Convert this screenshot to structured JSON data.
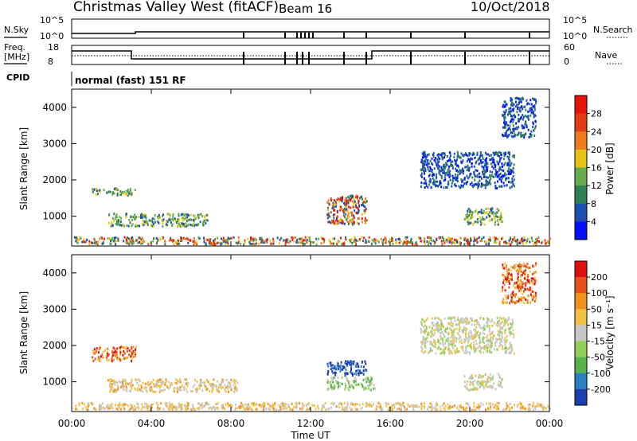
{
  "header": {
    "station": "Christmas Valley West (fitACF)",
    "beam": "Beam 16",
    "date": "10/Oct/2018"
  },
  "noise_panel": {
    "left_label": "N.Sky",
    "right_label": "N.Search",
    "left_ticks": [
      "10^5",
      "10^0"
    ],
    "right_ticks": [
      "10^5",
      "10^0"
    ]
  },
  "freq_panel": {
    "left_label_1": "Freq.",
    "left_label_2": "[MHz]",
    "right_label": "Nave",
    "left_ticks": [
      "18",
      "8"
    ],
    "right_ticks": [
      "60",
      "0"
    ]
  },
  "cpid": {
    "label": "CPID",
    "mode": "normal (fast) 151 RF"
  },
  "x_axis": {
    "label": "Time UT",
    "ticks": [
      "00:00",
      "04:00",
      "08:00",
      "12:00",
      "16:00",
      "20:00",
      "00:00"
    ]
  },
  "chart_data": [
    {
      "type": "heatmap",
      "parameter": "Power",
      "ylabel": "Slant Range [km]",
      "xlabel": "",
      "xlim": [
        0,
        24
      ],
      "ylim": [
        180,
        4500
      ],
      "yticks": [
        "1000",
        "2000",
        "3000",
        "4000"
      ],
      "colorbar_label": "Power [dB]",
      "colorbar_ticks": [
        "4",
        "8",
        "12",
        "16",
        "20",
        "24",
        "28"
      ],
      "colorbar_colors": [
        "#0010ff",
        "#1d4fb0",
        "#2f8055",
        "#67ab4f",
        "#e7c315",
        "#ee7b1d",
        "#e03b15",
        "#e8120c"
      ],
      "scatter_regions": [
        {
          "t_start": 0.1,
          "t_end": 24,
          "range_min": 250,
          "range_max": 450,
          "level": "low-mid"
        },
        {
          "t_start": 1.0,
          "t_end": 3.2,
          "range_min": 1600,
          "range_max": 1800,
          "level": "mid"
        },
        {
          "t_start": 1.8,
          "t_end": 6.8,
          "range_min": 750,
          "range_max": 1100,
          "level": "mid"
        },
        {
          "t_start": 12.8,
          "t_end": 14.8,
          "range_min": 800,
          "range_max": 1600,
          "level": "high"
        },
        {
          "t_start": 19.7,
          "t_end": 21.6,
          "range_min": 800,
          "range_max": 1250,
          "level": "mid"
        },
        {
          "t_start": 17.5,
          "t_end": 22.2,
          "range_min": 1800,
          "range_max": 2800,
          "level": "low"
        },
        {
          "t_start": 21.6,
          "t_end": 23.3,
          "range_min": 3200,
          "range_max": 4300,
          "level": "low"
        }
      ]
    },
    {
      "type": "heatmap",
      "parameter": "Velocity",
      "ylabel": "Slant Range [km]",
      "xlabel": "Time UT",
      "xlim": [
        0,
        24
      ],
      "ylim": [
        180,
        4500
      ],
      "yticks": [
        "1000",
        "2000",
        "3000",
        "4000"
      ],
      "colorbar_label": "Velocity [m s⁻¹]",
      "colorbar_ticks": [
        "200",
        "100",
        "50",
        "15",
        "-15",
        "-50",
        "-100",
        "-200"
      ],
      "colorbar_colors": [
        "#1c3fb0",
        "#2d7fbf",
        "#56b24b",
        "#8fd15a",
        "#c7c7c7",
        "#f2c242",
        "#f0921e",
        "#e8501a",
        "#e01010"
      ],
      "scatter_regions": [
        {
          "t_start": 0.1,
          "t_end": 24,
          "range_min": 250,
          "range_max": 450,
          "level": "neg-small"
        },
        {
          "t_start": 1.0,
          "t_end": 3.2,
          "range_min": 1600,
          "range_max": 2000,
          "level": "neg-large"
        },
        {
          "t_start": 1.8,
          "t_end": 8.3,
          "range_min": 750,
          "range_max": 1100,
          "level": "neg-small"
        },
        {
          "t_start": 12.8,
          "t_end": 14.8,
          "range_min": 1200,
          "range_max": 1600,
          "level": "pos-large"
        },
        {
          "t_start": 12.8,
          "t_end": 15.2,
          "range_min": 800,
          "range_max": 1150,
          "level": "pos-small"
        },
        {
          "t_start": 19.7,
          "t_end": 21.6,
          "range_min": 800,
          "range_max": 1250,
          "level": "near-zero"
        },
        {
          "t_start": 17.5,
          "t_end": 22.2,
          "range_min": 1800,
          "range_max": 2800,
          "level": "near-zero"
        },
        {
          "t_start": 21.6,
          "t_end": 23.3,
          "range_min": 3200,
          "range_max": 4300,
          "level": "neg-large"
        }
      ]
    }
  ]
}
